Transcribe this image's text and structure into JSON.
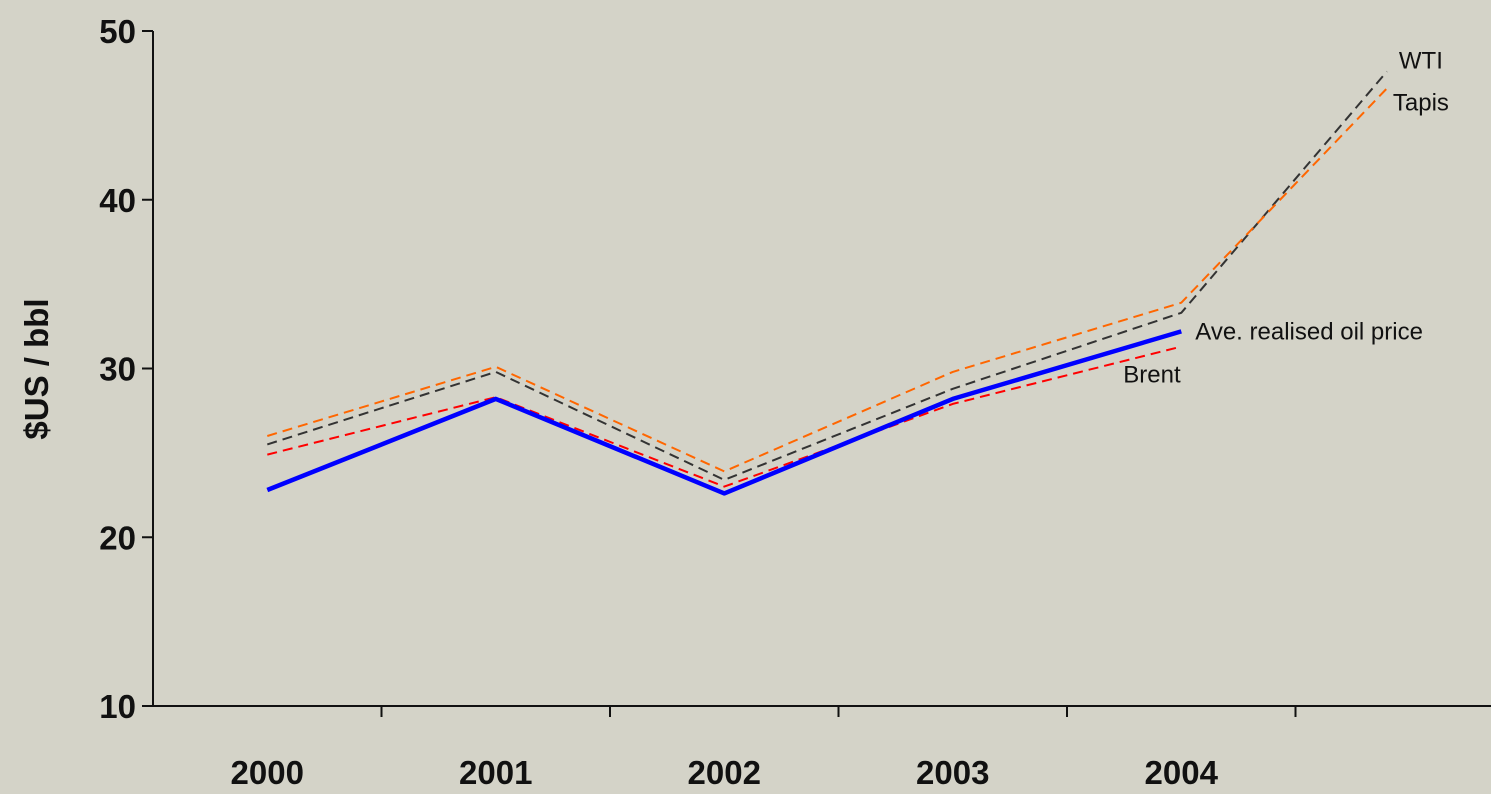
{
  "chart_data": {
    "type": "line",
    "title": "",
    "xlabel": "",
    "ylabel": "$US / bbl",
    "ylim": [
      10,
      50
    ],
    "yticks": [
      10,
      20,
      30,
      40,
      50
    ],
    "categories": [
      "2000",
      "2001",
      "2002",
      "2003",
      "2004"
    ],
    "grid": false,
    "legend": "inline labels at line ends",
    "series": [
      {
        "name": "WTI",
        "style": "dashed",
        "color": "#333333",
        "points": [
          {
            "x": 2000,
            "y": 25.5
          },
          {
            "x": 2001,
            "y": 29.8
          },
          {
            "x": 2002,
            "y": 23.4
          },
          {
            "x": 2003,
            "y": 28.8
          },
          {
            "x": 2004,
            "y": 33.3
          },
          {
            "x": 2004.9,
            "y": 47.6
          }
        ]
      },
      {
        "name": "Tapis",
        "style": "dashed",
        "color": "#ff6600",
        "points": [
          {
            "x": 2000,
            "y": 26.0
          },
          {
            "x": 2001,
            "y": 30.1
          },
          {
            "x": 2002,
            "y": 23.9
          },
          {
            "x": 2003,
            "y": 29.8
          },
          {
            "x": 2004,
            "y": 33.9
          },
          {
            "x": 2004.9,
            "y": 46.6
          }
        ]
      },
      {
        "name": "Ave. realised oil price",
        "style": "solid",
        "color": "#0000ff",
        "points": [
          {
            "x": 2000,
            "y": 22.8
          },
          {
            "x": 2001,
            "y": 28.2
          },
          {
            "x": 2002,
            "y": 22.6
          },
          {
            "x": 2003,
            "y": 28.2
          },
          {
            "x": 2004,
            "y": 32.2
          }
        ]
      },
      {
        "name": "Brent",
        "style": "dashed",
        "color": "#ff0000",
        "points": [
          {
            "x": 2000,
            "y": 24.9
          },
          {
            "x": 2001,
            "y": 28.3
          },
          {
            "x": 2002,
            "y": 23.0
          },
          {
            "x": 2003,
            "y": 27.9
          },
          {
            "x": 2004,
            "y": 31.3
          }
        ]
      }
    ]
  }
}
